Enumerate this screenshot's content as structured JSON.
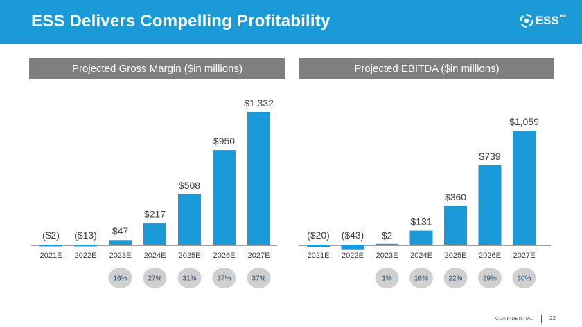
{
  "header": {
    "title": "ESS Delivers Compelling Profitability",
    "logo_text": "ESS",
    "logo_suffix": "INC",
    "logo_icon": "ess-swirl-logo"
  },
  "footer": {
    "confidential": "CONFIDENTIAL",
    "page": "22"
  },
  "colors": {
    "header_bg": "#1a9ad6",
    "bar": "#1a9ad6",
    "panel_title_bg": "#7f7f7f",
    "margin_circle": "#d0d0d0",
    "margin_text": "#1f4e79",
    "text_dark": "#404040"
  },
  "chart_data": [
    {
      "type": "bar",
      "title": "Projected Gross Margin ($in millions)",
      "categories": [
        "2021E",
        "2022E",
        "2023E",
        "2024E",
        "2025E",
        "2026E",
        "2027E"
      ],
      "values": [
        -2,
        -13,
        47,
        217,
        508,
        950,
        1332
      ],
      "value_labels": [
        "($2)",
        "($13)",
        "$47",
        "$217",
        "$508",
        "$950",
        "$1,332"
      ],
      "margins": [
        "",
        "",
        "16%",
        "27%",
        "31%",
        "37%",
        "37%"
      ],
      "ylim": [
        -20,
        1332
      ]
    },
    {
      "type": "bar",
      "title": "Projected EBITDA ($in millions)",
      "categories": [
        "2021E",
        "2022E",
        "2023E",
        "2024E",
        "2025E",
        "2026E",
        "2027E"
      ],
      "values": [
        -20,
        -43,
        2,
        131,
        360,
        739,
        1059
      ],
      "value_labels": [
        "($20)",
        "($43)",
        "$2",
        "$131",
        "$360",
        "$739",
        "$1,059"
      ],
      "margins": [
        "",
        "",
        "1%",
        "16%",
        "22%",
        "29%",
        "30%"
      ],
      "ylim": [
        -60,
        1059
      ]
    }
  ]
}
